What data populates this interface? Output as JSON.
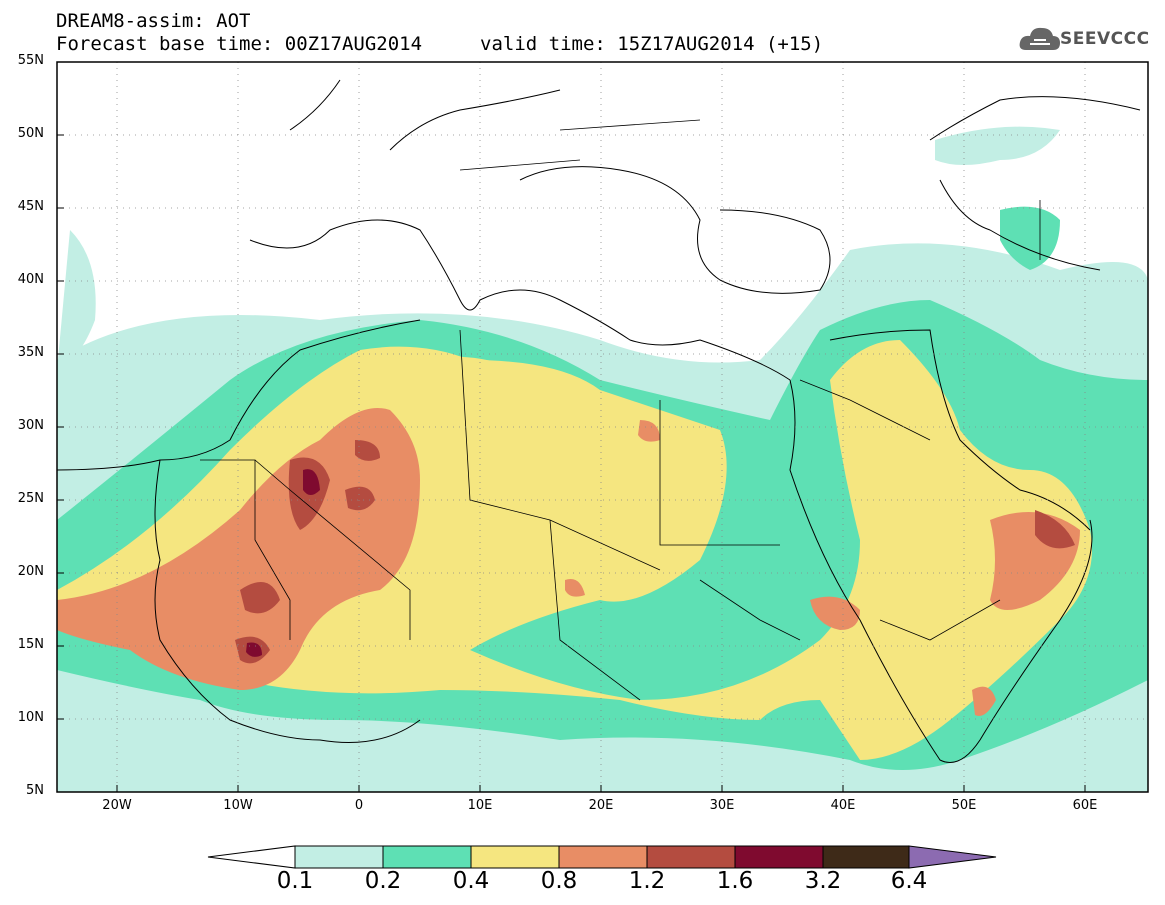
{
  "header": {
    "title_line1": "DREAM8-assim: AOT",
    "title_line2": "Forecast base time: 00Z17AUG2014",
    "valid_time": "valid time: 15Z17AUG2014 (+15)",
    "logo_text": "SEEVCCC"
  },
  "map": {
    "lon_range": [
      -25,
      65
    ],
    "lat_range": [
      5,
      55
    ],
    "lat_labels": [
      "55N",
      "50N",
      "45N",
      "40N",
      "35N",
      "30N",
      "25N",
      "20N",
      "15N",
      "10N",
      "5N"
    ],
    "lon_labels": [
      "20W",
      "10W",
      "0",
      "10E",
      "20E",
      "30E",
      "40E",
      "50E",
      "60E"
    ]
  },
  "colorbar": {
    "labels": [
      "0.1",
      "0.2",
      "0.4",
      "0.8",
      "1.2",
      "1.6",
      "3.2",
      "6.4"
    ],
    "colors": [
      "#ffffff",
      "#c2eee4",
      "#5ee0b4",
      "#f5e680",
      "#e88d65",
      "#b44c40",
      "#7f0a2f",
      "#3e2a18",
      "#8c6bb1"
    ]
  }
}
